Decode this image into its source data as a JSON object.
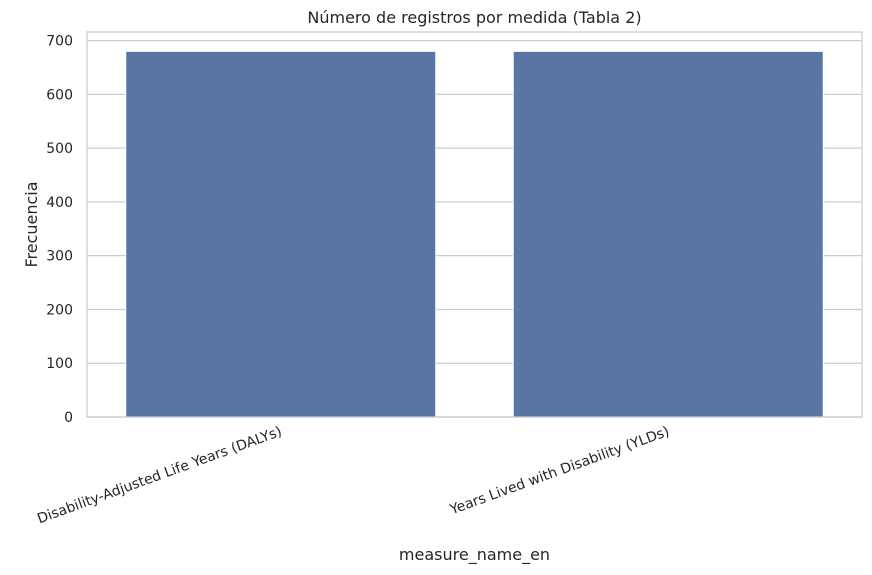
{
  "chart_data": {
    "type": "bar",
    "title": "Número de registros por medida (Tabla 2)",
    "xlabel": "measure_name_en",
    "ylabel": "Frecuencia",
    "categories": [
      "Disability-Adjusted Life Years (DALYs)",
      "Years Lived with Disability (YLDs)"
    ],
    "values": [
      680,
      680
    ],
    "ylim": [
      0,
      716
    ],
    "yticks": [
      0,
      100,
      200,
      300,
      400,
      500,
      600,
      700
    ],
    "grid": true,
    "bar_color": "#5975a4",
    "legend": "none"
  }
}
